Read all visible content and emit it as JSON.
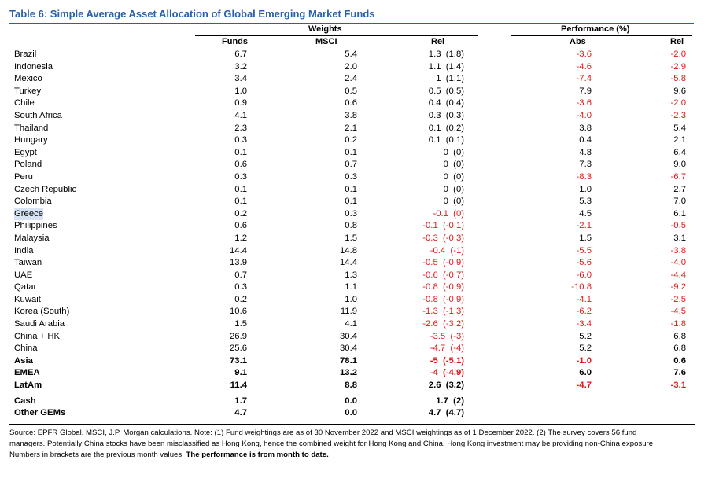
{
  "title": "Table 6: Simple Average Asset Allocation of Global Emerging Market Funds",
  "headers": {
    "weights": "Weights",
    "performance": "Performance (%)",
    "funds": "Funds",
    "msci": "MSCI",
    "rel": "Rel",
    "abs": "Abs",
    "perf_rel": "Rel"
  },
  "rows": [
    {
      "name": "Brazil",
      "funds": "6.7",
      "msci": "5.4",
      "rel": "1.3  (1.8)",
      "abs": "-3.6",
      "perf_rel": "-2.0"
    },
    {
      "name": "Indonesia",
      "funds": "3.2",
      "msci": "2.0",
      "rel": "1.1  (1.4)",
      "abs": "-4.6",
      "perf_rel": "-2.9"
    },
    {
      "name": "Mexico",
      "funds": "3.4",
      "msci": "2.4",
      "rel": "1  (1.1)",
      "abs": "-7.4",
      "perf_rel": "-5.8"
    },
    {
      "name": "Turkey",
      "funds": "1.0",
      "msci": "0.5",
      "rel": "0.5  (0.5)",
      "abs": "7.9",
      "perf_rel": "9.6"
    },
    {
      "name": "Chile",
      "funds": "0.9",
      "msci": "0.6",
      "rel": "0.4  (0.4)",
      "abs": "-3.6",
      "perf_rel": "-2.0"
    },
    {
      "name": "South Africa",
      "funds": "4.1",
      "msci": "3.8",
      "rel": "0.3  (0.3)",
      "abs": "-4.0",
      "perf_rel": "-2.3"
    },
    {
      "name": "Thailand",
      "funds": "2.3",
      "msci": "2.1",
      "rel": "0.1  (0.2)",
      "abs": "3.8",
      "perf_rel": "5.4"
    },
    {
      "name": "Hungary",
      "funds": "0.3",
      "msci": "0.2",
      "rel": "0.1  (0.1)",
      "abs": "0.4",
      "perf_rel": "2.1"
    },
    {
      "name": "Egypt",
      "funds": "0.1",
      "msci": "0.1",
      "rel": "0  (0)",
      "abs": "4.8",
      "perf_rel": "6.4"
    },
    {
      "name": "Poland",
      "funds": "0.6",
      "msci": "0.7",
      "rel": "0  (0)",
      "abs": "7.3",
      "perf_rel": "9.0"
    },
    {
      "name": "Peru",
      "funds": "0.3",
      "msci": "0.3",
      "rel": "0  (0)",
      "abs": "-8.3",
      "perf_rel": "-6.7"
    },
    {
      "name": "Czech Republic",
      "funds": "0.1",
      "msci": "0.1",
      "rel": "0  (0)",
      "abs": "1.0",
      "perf_rel": "2.7"
    },
    {
      "name": "Colombia",
      "funds": "0.1",
      "msci": "0.1",
      "rel": "0  (0)",
      "abs": "5.3",
      "perf_rel": "7.0"
    },
    {
      "name": "Greece",
      "funds": "0.2",
      "msci": "0.3",
      "rel": "-0.1  (0)",
      "abs": "4.5",
      "perf_rel": "6.1"
    },
    {
      "name": "Philippines",
      "funds": "0.6",
      "msci": "0.8",
      "rel": "-0.1  (-0.1)",
      "abs": "-2.1",
      "perf_rel": "-0.5"
    },
    {
      "name": "Malaysia",
      "funds": "1.2",
      "msci": "1.5",
      "rel": "-0.3  (-0.3)",
      "abs": "1.5",
      "perf_rel": "3.1"
    },
    {
      "name": "India",
      "funds": "14.4",
      "msci": "14.8",
      "rel": "-0.4  (-1)",
      "abs": "-5.5",
      "perf_rel": "-3.8"
    },
    {
      "name": "Taiwan",
      "funds": "13.9",
      "msci": "14.4",
      "rel": "-0.5  (-0.9)",
      "abs": "-5.6",
      "perf_rel": "-4.0"
    },
    {
      "name": "UAE",
      "funds": "0.7",
      "msci": "1.3",
      "rel": "-0.6  (-0.7)",
      "abs": "-6.0",
      "perf_rel": "-4.4"
    },
    {
      "name": "Qatar",
      "funds": "0.3",
      "msci": "1.1",
      "rel": "-0.8  (-0.9)",
      "abs": "-10.8",
      "perf_rel": "-9.2"
    },
    {
      "name": "Kuwait",
      "funds": "0.2",
      "msci": "1.0",
      "rel": "-0.8  (-0.9)",
      "abs": "-4.1",
      "perf_rel": "-2.5"
    },
    {
      "name": "Korea (South)",
      "funds": "10.6",
      "msci": "11.9",
      "rel": "-1.3  (-1.3)",
      "abs": "-6.2",
      "perf_rel": "-4.5"
    },
    {
      "name": "Saudi Arabia",
      "funds": "1.5",
      "msci": "4.1",
      "rel": "-2.6  (-3.2)",
      "abs": "-3.4",
      "perf_rel": "-1.8"
    },
    {
      "name": "China + HK",
      "funds": "26.9",
      "msci": "30.4",
      "rel": "-3.5  (-3)",
      "abs": "5.2",
      "perf_rel": "6.8"
    },
    {
      "name": "China",
      "funds": "25.6",
      "msci": "30.4",
      "rel": "-4.7  (-4)",
      "abs": "5.2",
      "perf_rel": "6.8"
    },
    {
      "name": "Asia",
      "funds": "73.1",
      "msci": "78.1",
      "rel": "-5  (-5.1)",
      "abs": "-1.0",
      "perf_rel": "0.6"
    },
    {
      "name": "EMEA",
      "funds": "9.1",
      "msci": "13.2",
      "rel": "-4  (-4.9)",
      "abs": "6.0",
      "perf_rel": "7.6"
    },
    {
      "name": "LatAm",
      "funds": "11.4",
      "msci": "8.8",
      "rel": "2.6  (3.2)",
      "abs": "-4.7",
      "perf_rel": "-3.1"
    },
    {
      "name": "Cash",
      "funds": "1.7",
      "msci": "0.0",
      "rel": "1.7  (2)",
      "abs": "",
      "perf_rel": ""
    },
    {
      "name": "Other GEMs",
      "funds": "4.7",
      "msci": "0.0",
      "rel": "4.7  (4.7)",
      "abs": "",
      "perf_rel": ""
    }
  ],
  "note": {
    "line1": "Source: EPFR Global, MSCI, J.P. Morgan calculations. Note: (1) Fund weightings are as of 30 November 2022 and MSCI weightings as of 1 December 2022. (2) The survey covers 56 fund",
    "line2": "managers. Potentially China stocks have been misclassified as Hong Kong, hence the combined weight for Hong Kong and China. Hong Kong investment may be providing non-China exposure",
    "line3_a": "Numbers in brackets are the previous month values. ",
    "line3_b": "The performance is from month to date."
  },
  "colors": {
    "title": "#2b5fa8",
    "negative": "#e01a1a",
    "highlight": "#d7e3f5"
  }
}
